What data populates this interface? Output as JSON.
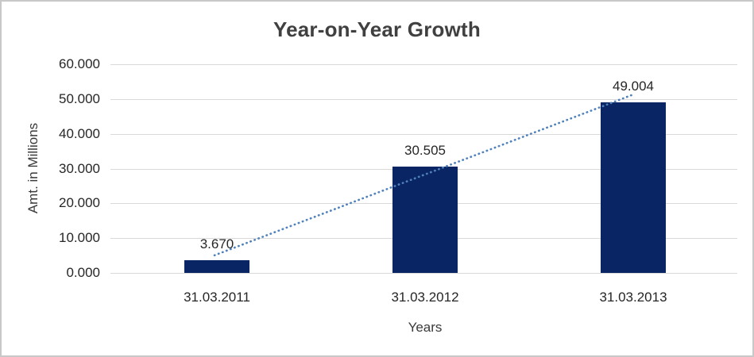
{
  "chart_data": {
    "type": "bar",
    "title": "Year-on-Year Growth",
    "categories": [
      "31.03.2011",
      "31.03.2012",
      "31.03.2013"
    ],
    "values": [
      3.67,
      30.505,
      49.004
    ],
    "data_labels": [
      "3.670",
      "30.505",
      "49.004"
    ],
    "xlabel": "Years",
    "ylabel": "Amt. in Millions",
    "ylim": [
      0,
      60
    ],
    "ytick_interval": 10,
    "yticks": [
      "60.000",
      "50.000",
      "40.000",
      "30.000",
      "20.000",
      "10.000",
      "0.000"
    ],
    "grid": true,
    "legend": "none",
    "bar_color": "#0a2563",
    "trendline": {
      "type": "linear",
      "style": "dotted",
      "color": "#4f81bd"
    },
    "colors": {
      "title_text": "#404040",
      "label_text": "#262626",
      "gridline": "#d9d9d9",
      "frame_border": "#c8c8c8",
      "background": "#ffffff"
    }
  }
}
